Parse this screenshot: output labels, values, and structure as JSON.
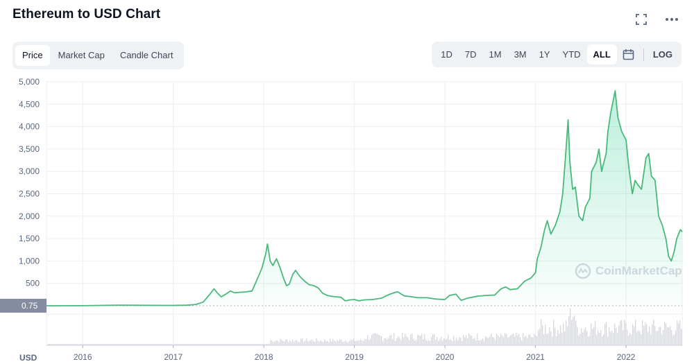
{
  "header": {
    "title": "Ethereum to USD Chart"
  },
  "icons": {
    "fullscreen": "fullscreen-icon",
    "more": "more-icon",
    "calendar": "calendar-icon"
  },
  "tabs": [
    {
      "label": "Price",
      "active": true
    },
    {
      "label": "Market Cap",
      "active": false
    },
    {
      "label": "Candle Chart",
      "active": false
    }
  ],
  "ranges": [
    {
      "label": "1D",
      "active": false
    },
    {
      "label": "7D",
      "active": false
    },
    {
      "label": "1M",
      "active": false
    },
    {
      "label": "3M",
      "active": false
    },
    {
      "label": "1Y",
      "active": false
    },
    {
      "label": "YTD",
      "active": false
    },
    {
      "label": "ALL",
      "active": true
    }
  ],
  "log_label": "LOG",
  "watermark": "CoinMarketCap",
  "colors": {
    "line": "#16c784",
    "line_stroke": "#48b97a",
    "volume": "#d6d9e3",
    "grid": "#eceef2",
    "badge": "#858ca2"
  },
  "chart_data": {
    "type": "area",
    "title": "Ethereum to USD Chart",
    "xlabel": "",
    "ylabel": "USD",
    "y_ticks": [
      "5,000",
      "4,500",
      "4,000",
      "3,500",
      "3,000",
      "2,500",
      "2,000",
      "1,500",
      "1,000",
      "500"
    ],
    "x_ticks": [
      "2016",
      "2017",
      "2018",
      "2019",
      "2020",
      "2021",
      "2022"
    ],
    "ylim": [
      0,
      5000
    ],
    "xlim": [
      2015.6,
      2022.62
    ],
    "start_value_label": "0.75",
    "grid": true,
    "series": [
      {
        "values": [
          [
            2015.6,
            0.75
          ],
          [
            2016.0,
            1
          ],
          [
            2016.2,
            8
          ],
          [
            2016.4,
            12
          ],
          [
            2016.6,
            11
          ],
          [
            2016.9,
            8
          ],
          [
            2017.0,
            8
          ],
          [
            2017.15,
            12
          ],
          [
            2017.25,
            30
          ],
          [
            2017.33,
            80
          ],
          [
            2017.4,
            250
          ],
          [
            2017.45,
            380
          ],
          [
            2017.48,
            300
          ],
          [
            2017.53,
            200
          ],
          [
            2017.58,
            260
          ],
          [
            2017.63,
            330
          ],
          [
            2017.68,
            290
          ],
          [
            2017.73,
            300
          ],
          [
            2017.8,
            310
          ],
          [
            2017.87,
            330
          ],
          [
            2017.9,
            470
          ],
          [
            2017.95,
            700
          ],
          [
            2017.98,
            850
          ],
          [
            2018.02,
            1150
          ],
          [
            2018.04,
            1380
          ],
          [
            2018.07,
            1000
          ],
          [
            2018.1,
            900
          ],
          [
            2018.14,
            1050
          ],
          [
            2018.18,
            850
          ],
          [
            2018.22,
            600
          ],
          [
            2018.25,
            450
          ],
          [
            2018.28,
            480
          ],
          [
            2018.32,
            700
          ],
          [
            2018.35,
            790
          ],
          [
            2018.4,
            650
          ],
          [
            2018.45,
            550
          ],
          [
            2018.5,
            470
          ],
          [
            2018.55,
            450
          ],
          [
            2018.6,
            400
          ],
          [
            2018.65,
            280
          ],
          [
            2018.7,
            230
          ],
          [
            2018.75,
            210
          ],
          [
            2018.8,
            200
          ],
          [
            2018.85,
            190
          ],
          [
            2018.9,
            110
          ],
          [
            2018.95,
            130
          ],
          [
            2019.0,
            140
          ],
          [
            2019.05,
            110
          ],
          [
            2019.1,
            130
          ],
          [
            2019.2,
            140
          ],
          [
            2019.3,
            170
          ],
          [
            2019.38,
            250
          ],
          [
            2019.45,
            300
          ],
          [
            2019.48,
            310
          ],
          [
            2019.55,
            220
          ],
          [
            2019.6,
            210
          ],
          [
            2019.7,
            180
          ],
          [
            2019.8,
            180
          ],
          [
            2019.9,
            150
          ],
          [
            2020.0,
            140
          ],
          [
            2020.05,
            230
          ],
          [
            2020.12,
            260
          ],
          [
            2020.18,
            120
          ],
          [
            2020.25,
            170
          ],
          [
            2020.35,
            210
          ],
          [
            2020.45,
            230
          ],
          [
            2020.55,
            240
          ],
          [
            2020.62,
            380
          ],
          [
            2020.67,
            420
          ],
          [
            2020.72,
            360
          ],
          [
            2020.8,
            380
          ],
          [
            2020.88,
            550
          ],
          [
            2020.95,
            620
          ],
          [
            2021.0,
            740
          ],
          [
            2021.02,
            1050
          ],
          [
            2021.06,
            1300
          ],
          [
            2021.1,
            1700
          ],
          [
            2021.13,
            1900
          ],
          [
            2021.17,
            1600
          ],
          [
            2021.22,
            1800
          ],
          [
            2021.27,
            2100
          ],
          [
            2021.3,
            2500
          ],
          [
            2021.33,
            3300
          ],
          [
            2021.36,
            4150
          ],
          [
            2021.38,
            3200
          ],
          [
            2021.41,
            2600
          ],
          [
            2021.44,
            2650
          ],
          [
            2021.48,
            2000
          ],
          [
            2021.52,
            1900
          ],
          [
            2021.55,
            2200
          ],
          [
            2021.6,
            2400
          ],
          [
            2021.62,
            3000
          ],
          [
            2021.67,
            3200
          ],
          [
            2021.7,
            3500
          ],
          [
            2021.73,
            3000
          ],
          [
            2021.78,
            3400
          ],
          [
            2021.8,
            3900
          ],
          [
            2021.83,
            4300
          ],
          [
            2021.86,
            4600
          ],
          [
            2021.88,
            4800
          ],
          [
            2021.91,
            4200
          ],
          [
            2021.95,
            3900
          ],
          [
            2022.0,
            3700
          ],
          [
            2022.03,
            3100
          ],
          [
            2022.07,
            2500
          ],
          [
            2022.1,
            2800
          ],
          [
            2022.13,
            2700
          ],
          [
            2022.17,
            2600
          ],
          [
            2022.22,
            3300
          ],
          [
            2022.25,
            3400
          ],
          [
            2022.28,
            2900
          ],
          [
            2022.32,
            2800
          ],
          [
            2022.36,
            2000
          ],
          [
            2022.4,
            1800
          ],
          [
            2022.44,
            1500
          ],
          [
            2022.47,
            1100
          ],
          [
            2022.5,
            1000
          ],
          [
            2022.53,
            1200
          ],
          [
            2022.56,
            1500
          ],
          [
            2022.6,
            1700
          ],
          [
            2022.62,
            1650
          ]
        ]
      }
    ]
  }
}
